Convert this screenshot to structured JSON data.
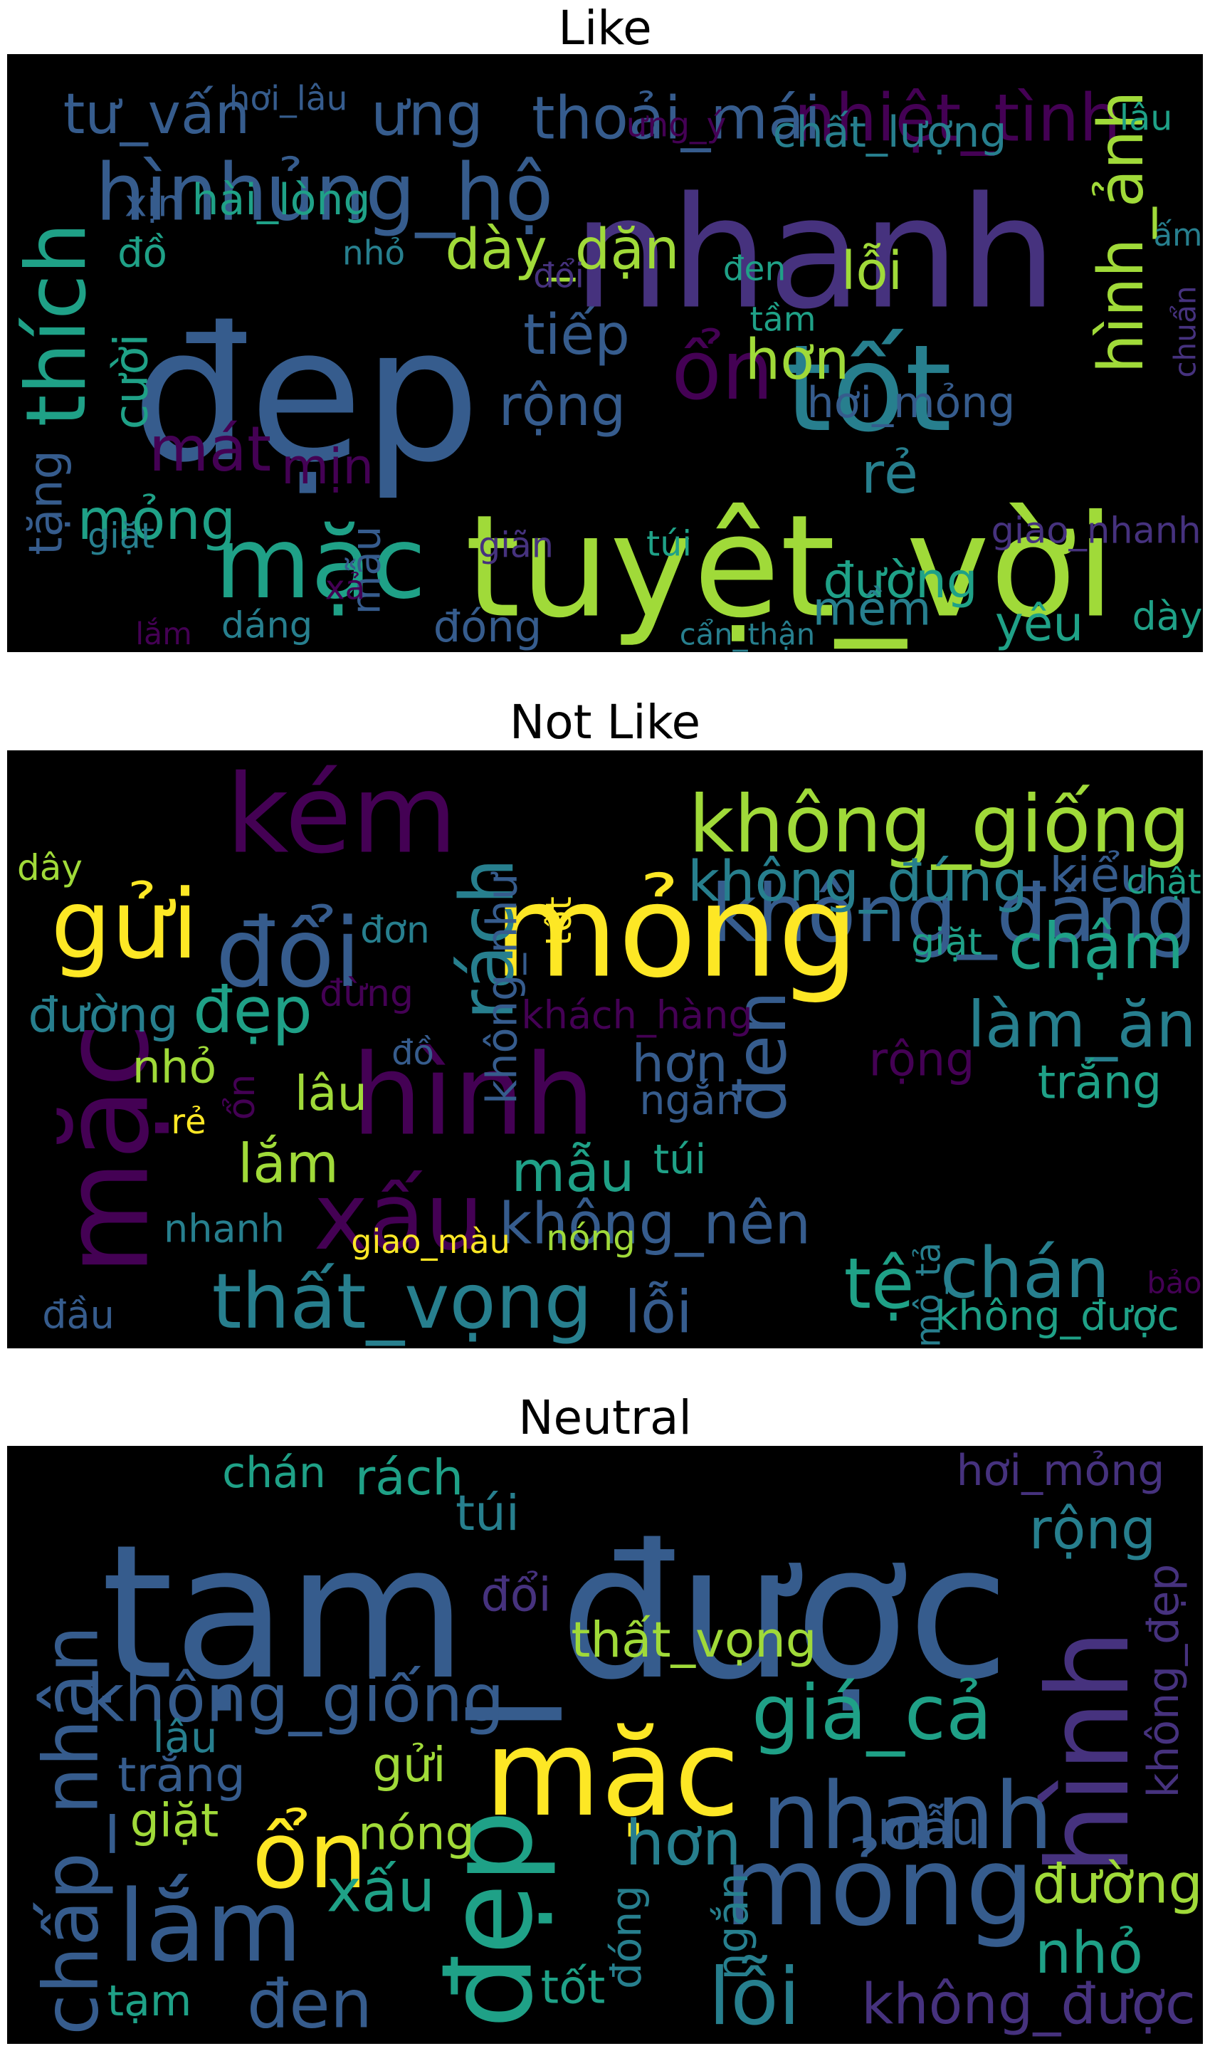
{
  "palette": [
    "#440154",
    "#46327e",
    "#365c8d",
    "#277f8e",
    "#1fa187",
    "#4ac16d",
    "#a0da39",
    "#fde725"
  ],
  "panels": [
    {
      "title": "Like",
      "words": [
        {
          "text": "đẹp",
          "weight": 1.0
        },
        {
          "text": "nhanh",
          "weight": 0.82
        },
        {
          "text": "tuyệt_vời",
          "weight": 0.8
        },
        {
          "text": "tốt",
          "weight": 0.62
        },
        {
          "text": "thích",
          "weight": 0.5
        },
        {
          "text": "mặc",
          "weight": 0.5
        },
        {
          "text": "hình",
          "weight": 0.38
        },
        {
          "text": "ủng_hộ",
          "weight": 0.38
        },
        {
          "text": "lắm",
          "weight": 0.4
        },
        {
          "text": "ổn",
          "weight": 0.4
        },
        {
          "text": "đóng",
          "weight": 0.36
        },
        {
          "text": "cẩn_thận",
          "weight": 0.33
        },
        {
          "text": "nhiệt_tình",
          "weight": 0.3
        },
        {
          "text": "thoải_mái",
          "weight": 0.26
        },
        {
          "text": "yêu",
          "weight": 0.3
        },
        {
          "text": "hình_ảnh",
          "weight": 0.28
        },
        {
          "text": "mát",
          "weight": 0.28
        },
        {
          "text": "tư_vấn",
          "weight": 0.24
        },
        {
          "text": "ưng",
          "weight": 0.26
        },
        {
          "text": "dày_dặn",
          "weight": 0.24
        },
        {
          "text": "mỏng",
          "weight": 0.24
        },
        {
          "text": "tiếp",
          "weight": 0.24
        },
        {
          "text": "rộng",
          "weight": 0.24
        },
        {
          "text": "rẻ",
          "weight": 0.24
        },
        {
          "text": "hơn",
          "weight": 0.24
        },
        {
          "text": "lỗi",
          "weight": 0.22
        },
        {
          "text": "mịn",
          "weight": 0.2
        },
        {
          "text": "đường",
          "weight": 0.2
        },
        {
          "text": "mềm",
          "weight": 0.18
        },
        {
          "text": "chuẩn",
          "weight": 0.18
        },
        {
          "text": "cười",
          "weight": 0.18
        },
        {
          "text": "tặng",
          "weight": 0.18
        },
        {
          "text": "dày",
          "weight": 0.2
        },
        {
          "text": "hài_lòng",
          "weight": 0.16
        },
        {
          "text": "chất_lượng",
          "weight": 0.16
        },
        {
          "text": "hơi_mỏng",
          "weight": 0.16
        },
        {
          "text": "xịn",
          "weight": 0.13
        },
        {
          "text": "đồ",
          "weight": 0.14
        },
        {
          "text": "mẫu",
          "weight": 0.14
        },
        {
          "text": "xả",
          "weight": 0.1
        },
        {
          "text": "dáng",
          "weight": 0.12
        },
        {
          "text": "giao_nhanh",
          "weight": 0.12
        },
        {
          "text": "giãn",
          "weight": 0.11
        },
        {
          "text": "túi",
          "weight": 0.11
        },
        {
          "text": "giặt",
          "weight": 0.11
        },
        {
          "text": "lâu",
          "weight": 0.11
        },
        {
          "text": "ấm",
          "weight": 0.11
        },
        {
          "text": "hơi_lâu",
          "weight": 0.1
        },
        {
          "text": "ưng_ý",
          "weight": 0.1
        },
        {
          "text": "nhỏ",
          "weight": 0.1
        },
        {
          "text": "đổi",
          "weight": 0.1
        },
        {
          "text": "đen",
          "weight": 0.1
        },
        {
          "text": "tầm",
          "weight": 0.1
        }
      ]
    },
    {
      "title": "Not Like",
      "words": [
        {
          "text": "kém",
          "weight": 1.0
        },
        {
          "text": "không_đáng",
          "weight": 0.62
        },
        {
          "text": "mỏng",
          "weight": 0.7
        },
        {
          "text": "không_giống",
          "weight": 0.46
        },
        {
          "text": "mặc",
          "weight": 0.64
        },
        {
          "text": "hình",
          "weight": 0.6
        },
        {
          "text": "đổi",
          "weight": 0.5
        },
        {
          "text": "gửi",
          "weight": 0.5
        },
        {
          "text": "xấu",
          "weight": 0.48
        },
        {
          "text": "thất_vọng",
          "weight": 0.44
        },
        {
          "text": "lỗi",
          "weight": 0.5
        },
        {
          "text": "rách",
          "weight": 0.36
        },
        {
          "text": "đen",
          "weight": 0.34
        },
        {
          "text": "chán",
          "weight": 0.34
        },
        {
          "text": "tệ",
          "weight": 0.34
        },
        {
          "text": "làm_ăn",
          "weight": 0.3
        },
        {
          "text": "chậm",
          "weight": 0.3
        },
        {
          "text": "đẹp",
          "weight": 0.3
        },
        {
          "text": "không_đúng",
          "weight": 0.25
        },
        {
          "text": "không_nên",
          "weight": 0.26
        },
        {
          "text": "mẫu",
          "weight": 0.25
        },
        {
          "text": "lắm",
          "weight": 0.24
        },
        {
          "text": "hơn",
          "weight": 0.22
        },
        {
          "text": "kiểu",
          "weight": 0.2
        },
        {
          "text": "đường",
          "weight": 0.2
        },
        {
          "text": "lâu",
          "weight": 0.2
        },
        {
          "text": "trắng",
          "weight": 0.19
        },
        {
          "text": "rộng",
          "weight": 0.19
        },
        {
          "text": "không_như",
          "weight": 0.16
        },
        {
          "text": "nhỏ",
          "weight": 0.18
        },
        {
          "text": "không_được",
          "weight": 0.15
        },
        {
          "text": "ngắn",
          "weight": 0.15
        },
        {
          "text": "túi",
          "weight": 0.15
        },
        {
          "text": "khách_hàng",
          "weight": 0.14
        },
        {
          "text": "nhanh",
          "weight": 0.14
        },
        {
          "text": "đầu",
          "weight": 0.14
        },
        {
          "text": "mô_tả",
          "weight": 0.14
        },
        {
          "text": "đừng",
          "weight": 0.13
        },
        {
          "text": "đơn",
          "weight": 0.13
        },
        {
          "text": "giặt",
          "weight": 0.13
        },
        {
          "text": "ổn",
          "weight": 0.13
        },
        {
          "text": "tốt",
          "weight": 0.12
        },
        {
          "text": "nóng",
          "weight": 0.12
        },
        {
          "text": "bảo",
          "weight": 0.12
        },
        {
          "text": "dây",
          "weight": 0.12
        },
        {
          "text": "chật",
          "weight": 0.11
        },
        {
          "text": "rẻ",
          "weight": 0.11
        },
        {
          "text": "đồ",
          "weight": 0.11
        },
        {
          "text": "giao_màu",
          "weight": 0.1
        }
      ]
    },
    {
      "title": "Neutral",
      "words": [
        {
          "text": "tạm_được",
          "weight": 1.0
        },
        {
          "text": "mặc",
          "weight": 0.62
        },
        {
          "text": "đẹp",
          "weight": 0.6
        },
        {
          "text": "hình",
          "weight": 0.58
        },
        {
          "text": "mỏng",
          "weight": 0.56
        },
        {
          "text": "chấp_nhận",
          "weight": 0.52
        },
        {
          "text": "lắm",
          "weight": 0.5
        },
        {
          "text": "nhanh",
          "weight": 0.46
        },
        {
          "text": "ổn",
          "weight": 0.46
        },
        {
          "text": "đen",
          "weight": 0.42
        },
        {
          "text": "lỗi",
          "weight": 0.44
        },
        {
          "text": "giá_cả",
          "weight": 0.36
        },
        {
          "text": "không_giống",
          "weight": 0.3
        },
        {
          "text": "hơn",
          "weight": 0.28
        },
        {
          "text": "không_được",
          "weight": 0.26
        },
        {
          "text": "xấu",
          "weight": 0.26
        },
        {
          "text": "đường",
          "weight": 0.25
        },
        {
          "text": "rộng",
          "weight": 0.24
        },
        {
          "text": "nhỏ",
          "weight": 0.25
        },
        {
          "text": "rách",
          "weight": 0.2
        },
        {
          "text": "túi",
          "weight": 0.2
        },
        {
          "text": "thất_vọng",
          "weight": 0.2
        },
        {
          "text": "trắng",
          "weight": 0.19
        },
        {
          "text": "gửi",
          "weight": 0.19
        },
        {
          "text": "giặt",
          "weight": 0.18
        },
        {
          "text": "nóng",
          "weight": 0.18
        },
        {
          "text": "mẫu",
          "weight": 0.18
        },
        {
          "text": "tốt",
          "weight": 0.18
        },
        {
          "text": "đổi",
          "weight": 0.18
        },
        {
          "text": "không_đẹp",
          "weight": 0.16
        },
        {
          "text": "ngắn",
          "weight": 0.16
        },
        {
          "text": "chán",
          "weight": 0.16
        },
        {
          "text": "hơi_mỏng",
          "weight": 0.16
        },
        {
          "text": "lâu",
          "weight": 0.16
        },
        {
          "text": "đóng",
          "weight": 0.15
        },
        {
          "text": "tạm",
          "weight": 0.16
        }
      ]
    }
  ]
}
